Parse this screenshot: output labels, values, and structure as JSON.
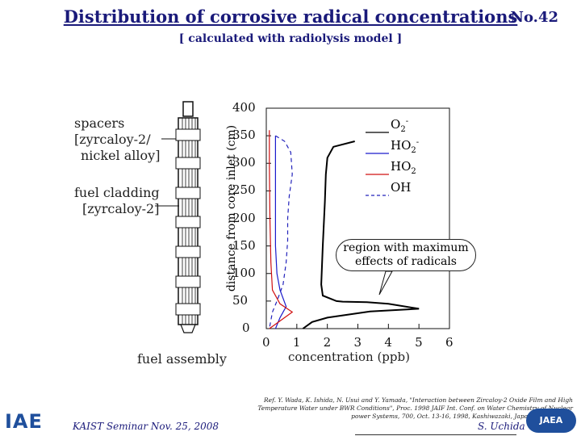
{
  "header": {
    "title": "Distribution of corrosive radical concentrations",
    "slide_no": "No.42",
    "subtitle": "[ calculated with radiolysis model ]"
  },
  "assembly": {
    "spacers_label": [
      "spacers",
      "[zyrcaloy-2/",
      "nickel alloy]"
    ],
    "cladding_label": [
      "fuel cladding",
      "[zyrcaloy-2]"
    ],
    "caption": "fuel assembly"
  },
  "chart_data": {
    "type": "line",
    "xlabel": "concentration (ppb)",
    "ylabel": "distance from core inlet (cm)",
    "x_ticks": [
      "0",
      "1",
      "2",
      "3",
      "4",
      "5",
      "6"
    ],
    "y_ticks": [
      "0",
      "50",
      "100",
      "150",
      "200",
      "250",
      "300",
      "350",
      "400"
    ],
    "xlim": [
      0,
      6
    ],
    "ylim": [
      0,
      400
    ],
    "series": [
      {
        "name": "O2-",
        "color": "#000000",
        "style": "solid",
        "points": [
          [
            2.9,
            340
          ],
          [
            2.2,
            330
          ],
          [
            2.0,
            310
          ],
          [
            1.95,
            280
          ],
          [
            1.92,
            230
          ],
          [
            1.85,
            150
          ],
          [
            1.8,
            80
          ],
          [
            1.85,
            60
          ],
          [
            2.3,
            50
          ],
          [
            2.5,
            49
          ],
          [
            3.3,
            48
          ],
          [
            4.0,
            45
          ],
          [
            5.0,
            36
          ],
          [
            3.4,
            31
          ],
          [
            2.0,
            20
          ],
          [
            1.5,
            12
          ],
          [
            1.2,
            0
          ]
        ]
      },
      {
        "name": "HO2-",
        "color": "#1a1acc",
        "style": "solid",
        "points": [
          [
            0.3,
            350
          ],
          [
            0.3,
            250
          ],
          [
            0.3,
            150
          ],
          [
            0.35,
            100
          ],
          [
            0.45,
            70
          ],
          [
            0.65,
            40
          ],
          [
            0.45,
            20
          ],
          [
            0.3,
            0
          ]
        ]
      },
      {
        "name": "HO2",
        "color": "#d01010",
        "style": "solid",
        "points": [
          [
            0.1,
            360
          ],
          [
            0.1,
            300
          ],
          [
            0.12,
            200
          ],
          [
            0.15,
            120
          ],
          [
            0.2,
            70
          ],
          [
            0.45,
            45
          ],
          [
            0.85,
            30
          ],
          [
            0.6,
            20
          ],
          [
            0.35,
            10
          ],
          [
            0.1,
            0
          ]
        ]
      },
      {
        "name": "OH",
        "color": "#2222bb",
        "style": "dashed",
        "points": [
          [
            0.3,
            350
          ],
          [
            0.6,
            340
          ],
          [
            0.8,
            320
          ],
          [
            0.85,
            280
          ],
          [
            0.75,
            240
          ],
          [
            0.7,
            200
          ],
          [
            0.7,
            160
          ],
          [
            0.65,
            120
          ],
          [
            0.55,
            80
          ],
          [
            0.35,
            50
          ],
          [
            0.2,
            30
          ],
          [
            0.1,
            0
          ]
        ]
      }
    ],
    "legend": [
      "O2-",
      "HO2-",
      "HO2",
      "OH"
    ],
    "annotation": "region with maximum effects of radicals"
  },
  "annotation_lines": [
    "region with maximum",
    "effects of radicals"
  ],
  "legend_display": [
    {
      "base": "O",
      "sub": "2",
      "sup": "-",
      "color": "#000000",
      "dash": false
    },
    {
      "base": "HO",
      "sub": "2",
      "sup": "-",
      "color": "#1a1acc",
      "dash": false
    },
    {
      "base": "HO",
      "sub": "2",
      "sup": "",
      "color": "#d01010",
      "dash": false
    },
    {
      "base": "OH",
      "sub": "",
      "sup": "",
      "color": "#2222bb",
      "dash": true
    }
  ],
  "footer": {
    "reference": "Ref. Y. Wada, K. Ishida, N. Usui and Y. Yamada, \"Interaction between Zircaloy-2 Oxide Film and High Temperature Water under BWR Conditions\", Proc. 1998 JAIF Int. Conf. on Water Chemistry of Nuclear power Systems, 700, Oct. 13-16, 1998, Kashiwazaki, Japan, JAIF (1998).",
    "seminar": "KAIST Seminar  Nov. 25, 2008",
    "author": "S. Uchida",
    "logo_left": "IAE",
    "logo_right": "JAEA"
  }
}
